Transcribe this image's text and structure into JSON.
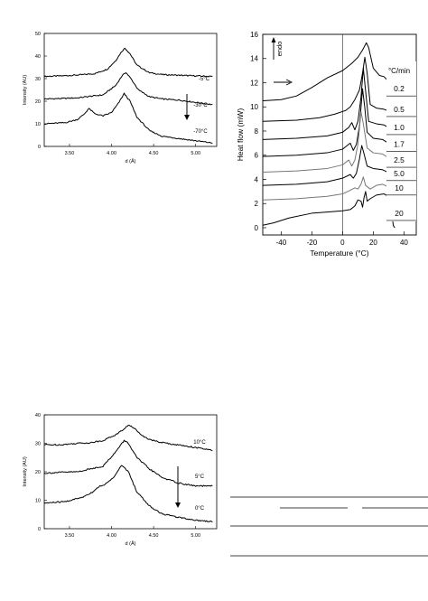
{
  "chart_data": [
    {
      "type": "line",
      "title": "",
      "xlabel": "d (Å)",
      "ylabel": "Intensity (AU)",
      "xlim": [
        3.2,
        5.25
      ],
      "ylim": [
        0,
        50
      ],
      "x_ticks": [
        "3.50",
        "4.00",
        "4.50",
        "5.00"
      ],
      "x_tick_values": [
        3.5,
        4.0,
        4.5,
        5.0
      ],
      "y_ticks": [
        "0",
        "10",
        "20",
        "30",
        "40",
        "50"
      ],
      "y_tick_values": [
        0,
        10,
        20,
        30,
        40,
        50
      ],
      "arrow_direction": "down",
      "series": [
        {
          "name": "-5°C",
          "color": "#000000",
          "points": [
            [
              3.2,
              31
            ],
            [
              3.4,
              31.2
            ],
            [
              3.6,
              31.6
            ],
            [
              3.8,
              32.2
            ],
            [
              3.95,
              34.2
            ],
            [
              4.05,
              38
            ],
            [
              4.12,
              42
            ],
            [
              4.16,
              43.5
            ],
            [
              4.22,
              41
            ],
            [
              4.3,
              36
            ],
            [
              4.45,
              32.6
            ],
            [
              4.6,
              31.8
            ],
            [
              4.8,
              31.5
            ],
            [
              5.0,
              31.2
            ],
            [
              5.2,
              31
            ]
          ]
        },
        {
          "name": "-30°C",
          "color": "#000000",
          "points": [
            [
              3.2,
              21
            ],
            [
              3.4,
              21.2
            ],
            [
              3.6,
              21.5
            ],
            [
              3.75,
              22.2
            ],
            [
              3.9,
              22.8
            ],
            [
              4.05,
              27
            ],
            [
              4.12,
              31
            ],
            [
              4.17,
              32.8
            ],
            [
              4.23,
              30
            ],
            [
              4.32,
              25
            ],
            [
              4.45,
              22
            ],
            [
              4.6,
              21
            ],
            [
              4.8,
              20.5
            ],
            [
              5.0,
              19.5
            ],
            [
              5.2,
              18.5
            ]
          ]
        },
        {
          "name": "-70°C",
          "color": "#000000",
          "points": [
            [
              3.2,
              10
            ],
            [
              3.45,
              10.5
            ],
            [
              3.6,
              12
            ],
            [
              3.68,
              14.5
            ],
            [
              3.73,
              16.8
            ],
            [
              3.8,
              14.5
            ],
            [
              3.9,
              13.5
            ],
            [
              4.0,
              15
            ],
            [
              4.08,
              19
            ],
            [
              4.15,
              23.4
            ],
            [
              4.22,
              20
            ],
            [
              4.3,
              13
            ],
            [
              4.45,
              7
            ],
            [
              4.6,
              4.5
            ],
            [
              4.8,
              3.5
            ],
            [
              5.0,
              2.5
            ],
            [
              5.2,
              1.5
            ]
          ]
        }
      ]
    },
    {
      "type": "line",
      "title": "",
      "xlabel": "Temperature (°C)",
      "ylabel": "Heat flow (mW)",
      "xlim": [
        -52,
        48
      ],
      "ylim": [
        -0.6,
        16
      ],
      "x_ticks": [
        "-40",
        "-20",
        "0",
        "20",
        "40"
      ],
      "x_tick_values": [
        -40,
        -20,
        0,
        20,
        40
      ],
      "y_ticks": [
        "0",
        "2",
        "4",
        "6",
        "8",
        "10",
        "12",
        "14",
        "16"
      ],
      "y_tick_values": [
        0,
        2,
        4,
        6,
        8,
        10,
        12,
        14,
        16
      ],
      "vertical_line_x": 0,
      "endo_label": "endo",
      "legend_title": "°C/min",
      "series": [
        {
          "name": "0.2",
          "color": "#000000",
          "offset": 10.5,
          "points": [
            [
              -52,
              0
            ],
            [
              -40,
              0.1
            ],
            [
              -30,
              0.4
            ],
            [
              -20,
              1.1
            ],
            [
              -10,
              1.9
            ],
            [
              0,
              2.5
            ],
            [
              6,
              3.1
            ],
            [
              10,
              3.6
            ],
            [
              13,
              4.2
            ],
            [
              15.5,
              4.8
            ],
            [
              17,
              4.4
            ],
            [
              20,
              2.7
            ],
            [
              24,
              2.1
            ],
            [
              27,
              2.0
            ],
            [
              30,
              1.6
            ],
            [
              33,
              0.6
            ],
            [
              35,
              0.1
            ],
            [
              36,
              -9.5
            ]
          ]
        },
        {
          "name": "0.5",
          "color": "#000000",
          "offset": 8.8,
          "points": [
            [
              -52,
              0
            ],
            [
              -30,
              0.1
            ],
            [
              -15,
              0.3
            ],
            [
              -5,
              0.6
            ],
            [
              2,
              0.9
            ],
            [
              5,
              1.2
            ],
            [
              8,
              1.8
            ],
            [
              11,
              2.6
            ],
            [
              13,
              4.0
            ],
            [
              14.5,
              5.3
            ],
            [
              16,
              4.0
            ],
            [
              18,
              1.4
            ],
            [
              22,
              1.1
            ],
            [
              27,
              1.0
            ],
            [
              31,
              0.8
            ],
            [
              33,
              0
            ],
            [
              34,
              -8.0
            ]
          ]
        },
        {
          "name": "1.0",
          "color": "#000000",
          "offset": 7.3,
          "points": [
            [
              -52,
              0
            ],
            [
              -30,
              0.1
            ],
            [
              -10,
              0.3
            ],
            [
              0,
              0.6
            ],
            [
              4,
              1.0
            ],
            [
              6,
              1.4
            ],
            [
              8,
              0.8
            ],
            [
              10,
              1.5
            ],
            [
              12,
              3.5
            ],
            [
              13.5,
              5.9
            ],
            [
              15,
              4.0
            ],
            [
              17,
              1.5
            ],
            [
              22,
              1.3
            ],
            [
              27,
              1.2
            ],
            [
              31,
              0.9
            ],
            [
              33,
              0
            ],
            [
              34,
              -6.5
            ]
          ]
        },
        {
          "name": "1.7",
          "color": "#000000",
          "offset": 5.9,
          "points": [
            [
              -52,
              0
            ],
            [
              -30,
              0.1
            ],
            [
              -10,
              0.3
            ],
            [
              0,
              0.6
            ],
            [
              5,
              1.1
            ],
            [
              7,
              0.5
            ],
            [
              9,
              1.0
            ],
            [
              11,
              2.5
            ],
            [
              13,
              5.6
            ],
            [
              14.5,
              4.0
            ],
            [
              16,
              2.0
            ],
            [
              20,
              1.5
            ],
            [
              26,
              1.4
            ],
            [
              31,
              1.0
            ],
            [
              33,
              0
            ],
            [
              34,
              -5.0
            ]
          ]
        },
        {
          "name": "2.5",
          "color": "#777777",
          "offset": 4.6,
          "points": [
            [
              -52,
              0
            ],
            [
              -30,
              0.1
            ],
            [
              -10,
              0.3
            ],
            [
              0,
              0.6
            ],
            [
              4,
              1.0
            ],
            [
              6,
              0.5
            ],
            [
              8,
              1.0
            ],
            [
              10,
              2.3
            ],
            [
              12,
              5.0
            ],
            [
              13.5,
              4.0
            ],
            [
              16,
              2.0
            ],
            [
              20,
              1.6
            ],
            [
              26,
              1.5
            ],
            [
              31,
              1.1
            ],
            [
              33,
              0
            ],
            [
              34,
              -3.8
            ]
          ]
        },
        {
          "name": "5.0",
          "color": "#000000",
          "offset": 3.5,
          "points": [
            [
              -52,
              0
            ],
            [
              -30,
              0.1
            ],
            [
              -10,
              0.3
            ],
            [
              0,
              0.6
            ],
            [
              5,
              0.9
            ],
            [
              7,
              0.6
            ],
            [
              9,
              1.0
            ],
            [
              11,
              2.2
            ],
            [
              12.5,
              3.3
            ],
            [
              14,
              2.6
            ],
            [
              16,
              1.6
            ],
            [
              20,
              1.4
            ],
            [
              26,
              1.3
            ],
            [
              31,
              1.0
            ],
            [
              33,
              0
            ],
            [
              34,
              -2.6
            ]
          ]
        },
        {
          "name": "10",
          "color": "#777777",
          "offset": 2.3,
          "points": [
            [
              -52,
              0
            ],
            [
              -30,
              0.1
            ],
            [
              -10,
              0.3
            ],
            [
              0,
              0.5
            ],
            [
              5,
              0.8
            ],
            [
              8,
              1.0
            ],
            [
              10,
              0.9
            ],
            [
              12,
              1.3
            ],
            [
              13.5,
              1.9
            ],
            [
              15,
              1.2
            ],
            [
              18,
              0.9
            ],
            [
              22,
              1.2
            ],
            [
              26,
              1.3
            ],
            [
              31,
              1.0
            ],
            [
              33,
              0
            ],
            [
              34,
              -1.7
            ]
          ]
        },
        {
          "name": "20",
          "color": "#000000",
          "offset": 0.2,
          "points": [
            [
              -52,
              0
            ],
            [
              -45,
              0.2
            ],
            [
              -35,
              0.6
            ],
            [
              -20,
              1.0
            ],
            [
              -10,
              1.1
            ],
            [
              0,
              1.2
            ],
            [
              5,
              1.3
            ],
            [
              8,
              1.6
            ],
            [
              10,
              2.1
            ],
            [
              12,
              2.0
            ],
            [
              13,
              1.5
            ],
            [
              14,
              2.3
            ],
            [
              15,
              2.8
            ],
            [
              16,
              2.0
            ],
            [
              18,
              2.2
            ],
            [
              22,
              2.5
            ],
            [
              27,
              2.6
            ],
            [
              31,
              2.3
            ],
            [
              33,
              0
            ],
            [
              34,
              -0.2
            ]
          ]
        }
      ]
    },
    {
      "type": "line",
      "title": "",
      "xlabel": "d (Å)",
      "ylabel": "Intensity (AU)",
      "xlim": [
        3.2,
        5.25
      ],
      "ylim": [
        0,
        40
      ],
      "x_ticks": [
        "3.50",
        "4.00",
        "4.50",
        "5.00"
      ],
      "x_tick_values": [
        3.5,
        4.0,
        4.5,
        5.0
      ],
      "y_ticks": [
        "0",
        "10",
        "20",
        "30",
        "40"
      ],
      "y_tick_values": [
        0,
        10,
        20,
        30,
        40
      ],
      "arrow_direction": "down",
      "series": [
        {
          "name": "10°C",
          "color": "#000000",
          "points": [
            [
              3.2,
              29.5
            ],
            [
              3.4,
              29.5
            ],
            [
              3.6,
              30
            ],
            [
              3.75,
              30.2
            ],
            [
              3.9,
              31
            ],
            [
              4.05,
              33
            ],
            [
              4.15,
              35
            ],
            [
              4.2,
              36.5
            ],
            [
              4.28,
              35
            ],
            [
              4.4,
              32
            ],
            [
              4.55,
              30.5
            ],
            [
              4.7,
              29.8
            ],
            [
              4.9,
              29
            ],
            [
              5.1,
              28
            ],
            [
              5.2,
              27.5
            ]
          ]
        },
        {
          "name": "5°C",
          "color": "#000000",
          "points": [
            [
              3.2,
              19.5
            ],
            [
              3.4,
              19.8
            ],
            [
              3.6,
              20
            ],
            [
              3.75,
              21
            ],
            [
              3.9,
              22
            ],
            [
              4.05,
              27
            ],
            [
              4.15,
              31
            ],
            [
              4.2,
              30
            ],
            [
              4.3,
              25
            ],
            [
              4.45,
              21
            ],
            [
              4.6,
              18
            ],
            [
              4.8,
              16
            ],
            [
              5.0,
              15
            ],
            [
              5.2,
              15
            ]
          ]
        },
        {
          "name": "0°C",
          "color": "#000000",
          "points": [
            [
              3.2,
              9
            ],
            [
              3.45,
              9.5
            ],
            [
              3.65,
              11
            ],
            [
              3.78,
              13
            ],
            [
              3.85,
              14.8
            ],
            [
              3.95,
              16
            ],
            [
              4.05,
              19
            ],
            [
              4.12,
              22.3
            ],
            [
              4.2,
              20
            ],
            [
              4.3,
              13
            ],
            [
              4.45,
              8
            ],
            [
              4.6,
              5.2
            ],
            [
              4.8,
              4
            ],
            [
              5.0,
              3
            ],
            [
              5.2,
              2.5
            ]
          ]
        }
      ]
    }
  ]
}
